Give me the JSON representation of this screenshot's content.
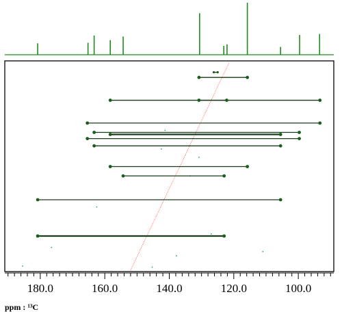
{
  "chart_data": {
    "type": "scatter",
    "subtype": "2D NMR (INADEQUATE-style) correlation plot with 1D 13C projection on top",
    "x_axis": {
      "label": "ppm : ¹³C",
      "unit_prefix": "ppm : ",
      "unit_nucleus": "¹³C",
      "range": [
        191.0,
        89.0
      ],
      "reversed": true,
      "tick_labels": [
        "180.0",
        "160.0",
        "140.0",
        "120.0",
        "100.0"
      ],
      "tick_values": [
        180.0,
        160.0,
        140.0,
        120.0,
        100.0
      ],
      "minor_step": 2.0
    },
    "grid": false,
    "colors": {
      "spectrum": "#1e8a1e",
      "correlation": "#1a3a1a",
      "diagonal": "#ff6b6b",
      "dot": "#1a5c1a",
      "noise": "#2aa0a0",
      "frame": "#000000"
    },
    "projection_peaks": [
      {
        "x": 180.8,
        "h": 0.22
      },
      {
        "x": 165.2,
        "h": 0.23
      },
      {
        "x": 163.3,
        "h": 0.37
      },
      {
        "x": 158.3,
        "h": 0.28
      },
      {
        "x": 154.3,
        "h": 0.35
      },
      {
        "x": 130.6,
        "h": 0.8
      },
      {
        "x": 123.1,
        "h": 0.17
      },
      {
        "x": 122.1,
        "h": 0.2
      },
      {
        "x": 115.8,
        "h": 1.0
      },
      {
        "x": 105.5,
        "h": 0.15
      },
      {
        "x": 99.6,
        "h": 0.38
      },
      {
        "x": 93.4,
        "h": 0.4
      }
    ],
    "diagonal": {
      "x1": 152.0,
      "y1": 0.0,
      "x2": 121.5,
      "y2": 1.0
    },
    "correlations": [
      {
        "x1": 126.2,
        "x2": 125.0,
        "y": 0.955,
        "small": true
      },
      {
        "x1": 130.8,
        "x2": 115.8,
        "y": 0.93
      },
      {
        "x1": 158.3,
        "x2": 93.3,
        "y": 0.82
      },
      {
        "x1": 130.8,
        "x2": 122.2,
        "y": 0.82
      },
      {
        "x1": 165.4,
        "x2": 93.3,
        "y": 0.71
      },
      {
        "x1": 163.3,
        "x2": 99.7,
        "y": 0.665
      },
      {
        "x1": 158.3,
        "x2": 105.5,
        "y": 0.655,
        "double": true
      },
      {
        "x1": 165.4,
        "x2": 99.7,
        "y": 0.635
      },
      {
        "x1": 163.3,
        "x2": 105.5,
        "y": 0.6
      },
      {
        "x1": 158.3,
        "x2": 115.8,
        "y": 0.5
      },
      {
        "x1": 154.3,
        "x2": 123.0,
        "y": 0.455
      },
      {
        "x1": 180.8,
        "x2": 105.5,
        "y": 0.34
      },
      {
        "x1": 180.8,
        "x2": 123.0,
        "y": 0.165,
        "double": true
      }
    ],
    "noise_points": [
      {
        "x": 141.3,
        "y": 0.675
      },
      {
        "x": 142.5,
        "y": 0.585
      },
      {
        "x": 130.8,
        "y": 0.545
      },
      {
        "x": 133.5,
        "y": 0.455
      },
      {
        "x": 162.5,
        "y": 0.305
      },
      {
        "x": 127.0,
        "y": 0.175
      },
      {
        "x": 176.5,
        "y": 0.11
      },
      {
        "x": 137.8,
        "y": 0.07
      },
      {
        "x": 111.0,
        "y": 0.09
      },
      {
        "x": 145.3,
        "y": 0.015
      },
      {
        "x": 185.5,
        "y": 0.02
      }
    ]
  }
}
